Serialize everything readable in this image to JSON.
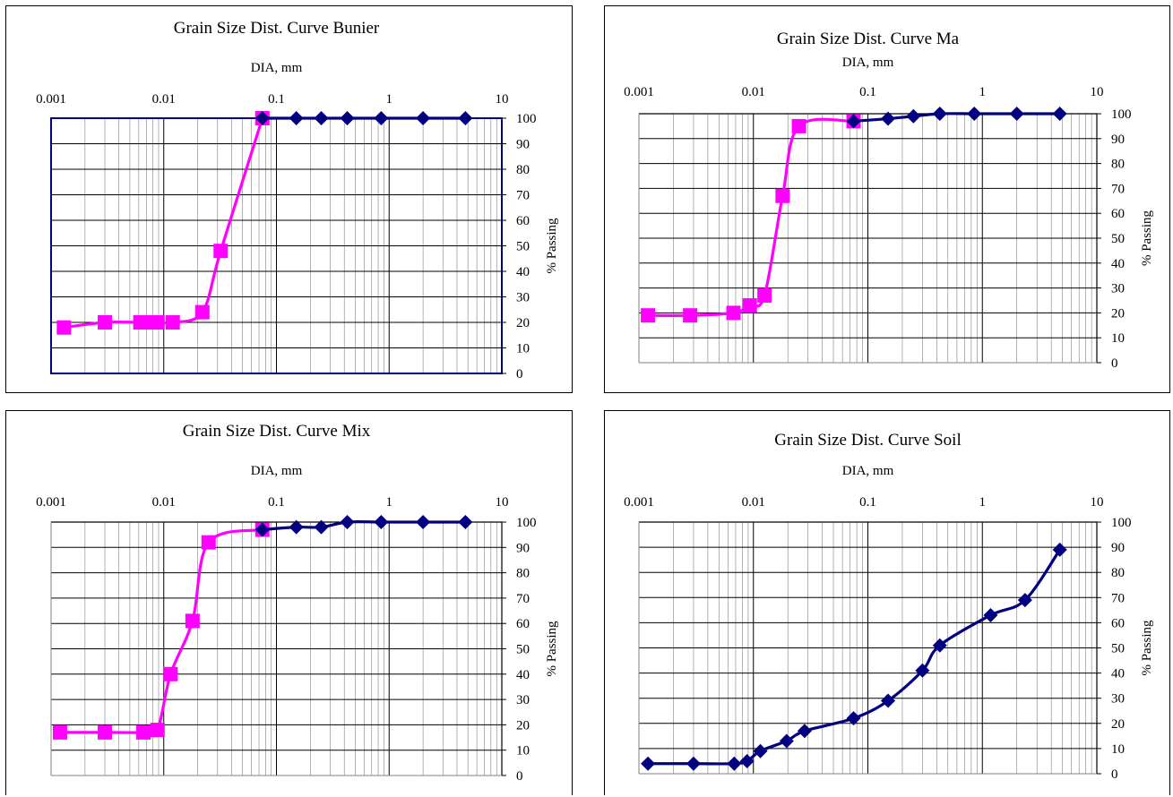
{
  "chart_data": [
    {
      "type": "scatter",
      "title": "Grain Size Dist. Curve Bunier",
      "xlabel": "DIA, mm",
      "ylabel": "% Passing",
      "xscale": "log",
      "xlim": [
        0.001,
        10
      ],
      "ylim": [
        0,
        100
      ],
      "x_ticks": [
        "0.001",
        "0.01",
        "0.1",
        "1",
        "10"
      ],
      "y_ticks": [
        "0",
        "10",
        "20",
        "30",
        "40",
        "50",
        "60",
        "70",
        "80",
        "90",
        "100"
      ],
      "grid": true,
      "legend": "none",
      "series": [
        {
          "color": "#FF00FF",
          "marker": "square",
          "x": [
            0.075,
            0.032,
            0.022,
            0.012,
            0.0088,
            0.0072,
            0.0062,
            0.003,
            0.0013
          ],
          "y": [
            100,
            48,
            24,
            20,
            20,
            20,
            20,
            20,
            18
          ]
        },
        {
          "color": "#000080",
          "marker": "diamond",
          "x": [
            4.75,
            2.0,
            0.85,
            0.425,
            0.25,
            0.15,
            0.075
          ],
          "y": [
            100,
            100,
            100,
            100,
            100,
            100,
            100
          ]
        }
      ]
    },
    {
      "type": "scatter",
      "title": "Grain Size Dist. Curve Ma",
      "xlabel": "DIA, mm",
      "ylabel": "% Passing",
      "xscale": "log",
      "xlim": [
        0.001,
        10
      ],
      "ylim": [
        0,
        100
      ],
      "x_ticks": [
        "0.001",
        "0.01",
        "0.1",
        "1",
        "10"
      ],
      "y_ticks": [
        "0",
        "10",
        "20",
        "30",
        "40",
        "50",
        "60",
        "70",
        "80",
        "90",
        "100"
      ],
      "grid": true,
      "legend": "none",
      "series": [
        {
          "color": "#FF00FF",
          "marker": "square",
          "x": [
            0.075,
            0.025,
            0.018,
            0.0125,
            0.0093,
            0.0067,
            0.0028,
            0.0012
          ],
          "y": [
            97,
            95,
            67,
            27,
            23,
            20,
            19,
            19
          ]
        },
        {
          "color": "#000080",
          "marker": "diamond",
          "x": [
            4.75,
            2.0,
            0.85,
            0.425,
            0.25,
            0.15,
            0.075
          ],
          "y": [
            100,
            100,
            100,
            100,
            99,
            98,
            97
          ]
        }
      ]
    },
    {
      "type": "scatter",
      "title": "Grain Size Dist. Curve Mix",
      "xlabel": "DIA, mm",
      "ylabel": "% Passing",
      "xscale": "log",
      "xlim": [
        0.001,
        10
      ],
      "ylim": [
        0,
        100
      ],
      "x_ticks": [
        "0.001",
        "0.01",
        "0.1",
        "1",
        "10"
      ],
      "y_ticks": [
        "0",
        "10",
        "20",
        "30",
        "40",
        "50",
        "60",
        "70",
        "80",
        "90",
        "100"
      ],
      "grid": true,
      "legend": "none",
      "series": [
        {
          "color": "#FF00FF",
          "marker": "square",
          "x": [
            0.075,
            0.025,
            0.018,
            0.0115,
            0.0088,
            0.0066,
            0.003,
            0.0012
          ],
          "y": [
            97,
            92,
            61,
            40,
            18,
            17,
            17,
            17
          ]
        },
        {
          "color": "#000080",
          "marker": "diamond",
          "x": [
            4.75,
            2.0,
            0.85,
            0.425,
            0.25,
            0.15,
            0.075
          ],
          "y": [
            100,
            100,
            100,
            100,
            98,
            98,
            97
          ]
        }
      ]
    },
    {
      "type": "scatter",
      "title": "Grain Size Dist. Curve Soil",
      "xlabel": "DIA, mm",
      "ylabel": "% Passing",
      "xscale": "log",
      "xlim": [
        0.001,
        10
      ],
      "ylim": [
        0,
        100
      ],
      "x_ticks": [
        "0.001",
        "0.01",
        "0.1",
        "1",
        "10"
      ],
      "y_ticks": [
        "0",
        "10",
        "20",
        "30",
        "40",
        "50",
        "60",
        "70",
        "80",
        "90",
        "100"
      ],
      "grid": true,
      "legend": "none",
      "series": [
        {
          "color": "#000080",
          "marker": "diamond",
          "x": [
            4.75,
            2.36,
            1.18,
            0.425,
            0.3,
            0.15,
            0.075,
            0.028,
            0.0195,
            0.0115,
            0.0088,
            0.0068,
            0.003,
            0.0012
          ],
          "y": [
            89,
            69,
            63,
            51,
            41,
            29,
            22,
            17,
            13,
            9,
            5,
            4,
            4,
            4
          ]
        }
      ]
    }
  ]
}
